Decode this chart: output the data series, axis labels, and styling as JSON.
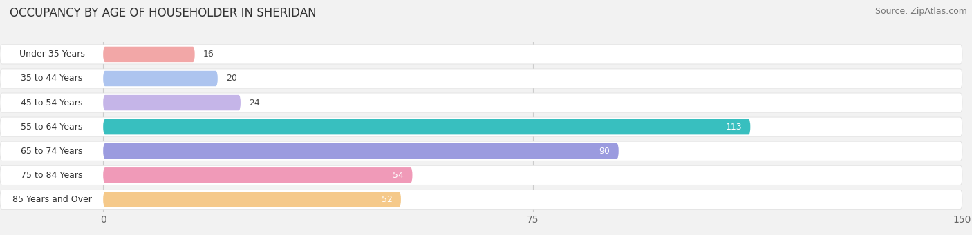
{
  "title": "OCCUPANCY BY AGE OF HOUSEHOLDER IN SHERIDAN",
  "source": "Source: ZipAtlas.com",
  "categories": [
    "Under 35 Years",
    "35 to 44 Years",
    "45 to 54 Years",
    "55 to 64 Years",
    "65 to 74 Years",
    "75 to 84 Years",
    "85 Years and Over"
  ],
  "values": [
    16,
    20,
    24,
    113,
    90,
    54,
    52
  ],
  "bar_colors": [
    "#f2a7a7",
    "#adc4ef",
    "#c5b5e8",
    "#38bfbf",
    "#9b9bdf",
    "#f09ab8",
    "#f5c98a"
  ],
  "xlim": [
    -18,
    150
  ],
  "data_xlim": [
    0,
    150
  ],
  "xticks": [
    0,
    75,
    150
  ],
  "bar_height": 0.72,
  "background_color": "#f2f2f2",
  "bar_background_color": "#ffffff",
  "row_background_color": "#f2f2f2",
  "label_bg_color": "#ffffff",
  "label_color_dark": "#444444",
  "label_color_light": "#ffffff",
  "title_fontsize": 12,
  "source_fontsize": 9,
  "tick_fontsize": 10,
  "category_fontsize": 9,
  "value_fontsize": 9
}
